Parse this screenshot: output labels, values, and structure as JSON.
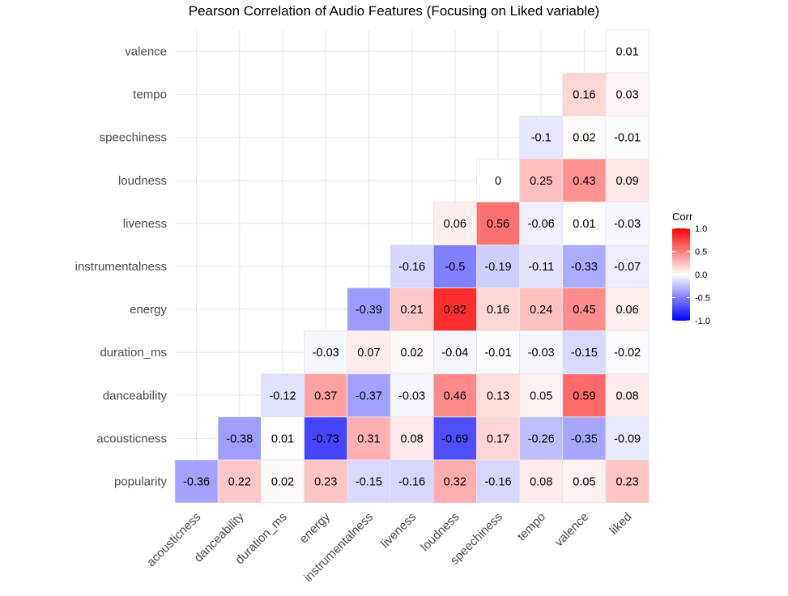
{
  "chart_data": {
    "type": "heatmap",
    "title": "Pearson Correlation of Audio Features (Focusing on Liked variable)",
    "x_categories": [
      "acousticness",
      "danceability",
      "duration_ms",
      "energy",
      "instrumentalness",
      "liveness",
      "loudness",
      "speechiness",
      "tempo",
      "valence",
      "liked"
    ],
    "y_categories": [
      "popularity",
      "acousticness",
      "danceability",
      "duration_ms",
      "energy",
      "instrumentalness",
      "liveness",
      "loudness",
      "speechiness",
      "tempo",
      "valence"
    ],
    "values": [
      [
        -0.36,
        0.22,
        0.02,
        0.23,
        -0.15,
        -0.16,
        0.32,
        -0.16,
        0.08,
        0.05,
        0.23
      ],
      [
        null,
        -0.38,
        0.01,
        -0.73,
        0.31,
        0.08,
        -0.69,
        0.17,
        -0.26,
        -0.35,
        -0.09
      ],
      [
        null,
        null,
        -0.12,
        0.37,
        -0.37,
        -0.03,
        0.46,
        0.13,
        0.05,
        0.59,
        0.08
      ],
      [
        null,
        null,
        null,
        -0.03,
        0.07,
        0.02,
        -0.04,
        -0.01,
        -0.03,
        -0.15,
        -0.02
      ],
      [
        null,
        null,
        null,
        null,
        -0.39,
        0.21,
        0.82,
        0.16,
        0.24,
        0.45,
        0.06
      ],
      [
        null,
        null,
        null,
        null,
        null,
        -0.16,
        -0.5,
        -0.19,
        -0.11,
        -0.33,
        -0.07
      ],
      [
        null,
        null,
        null,
        null,
        null,
        null,
        0.06,
        0.56,
        -0.06,
        0.01,
        -0.03
      ],
      [
        null,
        null,
        null,
        null,
        null,
        null,
        null,
        0,
        0.25,
        0.43,
        0.09
      ],
      [
        null,
        null,
        null,
        null,
        null,
        null,
        null,
        null,
        -0.1,
        0.02,
        -0.01
      ],
      [
        null,
        null,
        null,
        null,
        null,
        null,
        null,
        null,
        null,
        0.16,
        0.03
      ],
      [
        null,
        null,
        null,
        null,
        null,
        null,
        null,
        null,
        null,
        null,
        0.01
      ]
    ],
    "legend": {
      "title": "Corr",
      "ticks": [
        "1.0",
        "0.5",
        "0.0",
        "-0.5",
        "-1.0"
      ],
      "placement": "right"
    },
    "color_scale": {
      "low": "#0000ff",
      "mid": "#ffffff",
      "high": "#ff0000"
    },
    "grid": true
  }
}
